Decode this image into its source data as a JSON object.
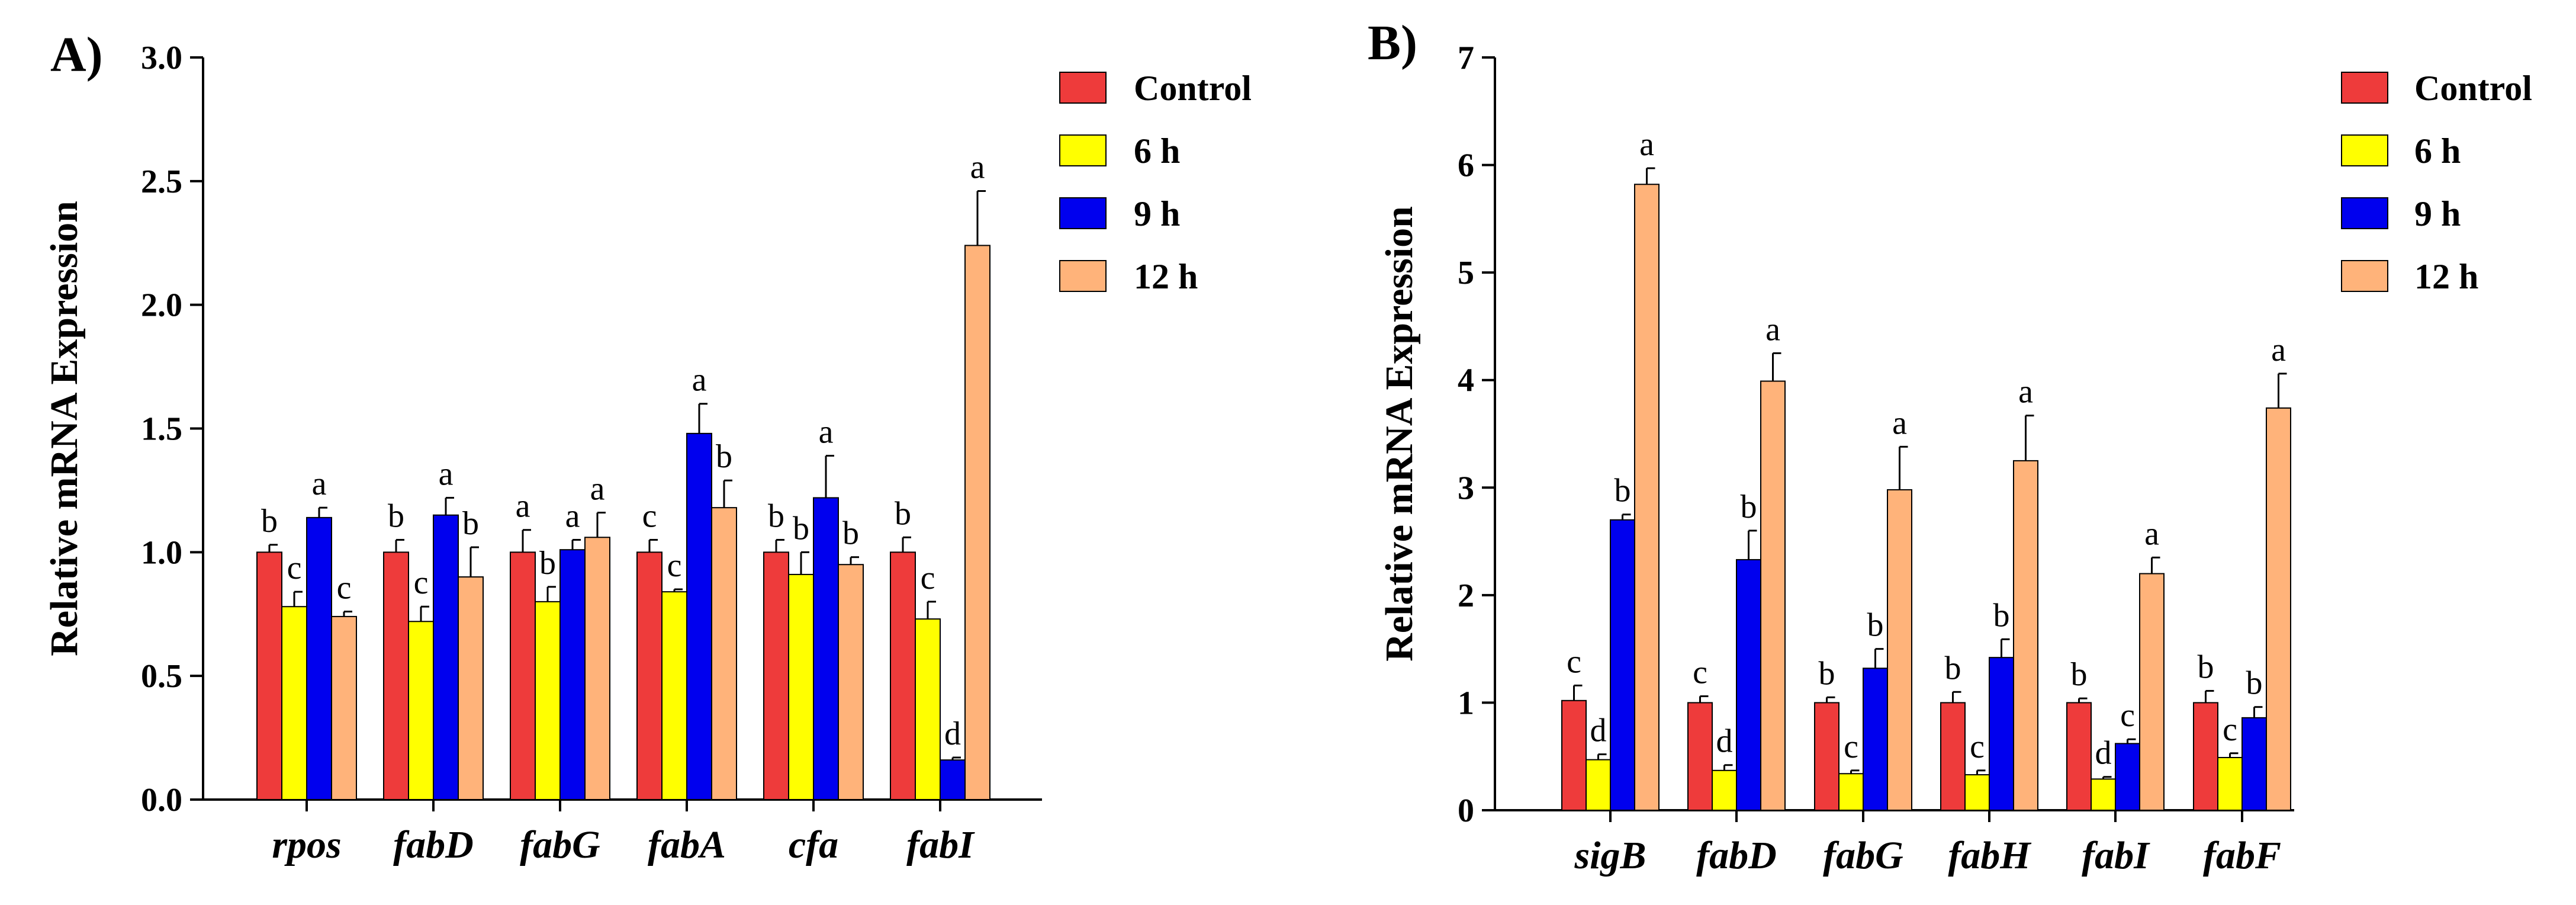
{
  "chart_data": [
    {
      "type": "bar",
      "panel_label": "A)",
      "ylabel": "Relative mRNA Expression",
      "xlabel": "",
      "ylim": [
        0,
        3.0
      ],
      "yticks": [
        "0.0",
        "0.5",
        "1.0",
        "1.5",
        "2.0",
        "2.5",
        "3.0"
      ],
      "categories": [
        "rpos",
        "fabD",
        "fabG",
        "fabA",
        "cfa",
        "fabI"
      ],
      "legend_position": "top-right",
      "series": [
        {
          "name": "Control",
          "color": "#EE3B3B",
          "values": [
            1.0,
            1.0,
            1.0,
            1.0,
            1.0,
            1.0
          ],
          "errors": [
            0.03,
            0.05,
            0.09,
            0.05,
            0.05,
            0.06
          ],
          "letters": [
            "b",
            "b",
            "a",
            "c",
            "b",
            "b"
          ]
        },
        {
          "name": "6 h",
          "color": "#FFFF00",
          "values": [
            0.78,
            0.72,
            0.8,
            0.84,
            0.91,
            0.73
          ],
          "errors": [
            0.06,
            0.06,
            0.06,
            0.01,
            0.09,
            0.07
          ],
          "letters": [
            "c",
            "c",
            "b",
            "c",
            "b",
            "c"
          ]
        },
        {
          "name": "9 h",
          "color": "#0000EE",
          "values": [
            1.14,
            1.15,
            1.01,
            1.48,
            1.22,
            0.16
          ],
          "errors": [
            0.04,
            0.07,
            0.04,
            0.12,
            0.17,
            0.01
          ],
          "letters": [
            "a",
            "a",
            "a",
            "a",
            "a",
            "d"
          ]
        },
        {
          "name": "12 h",
          "color": "#FFB37A",
          "values": [
            0.74,
            0.9,
            1.06,
            1.18,
            0.95,
            2.24
          ],
          "errors": [
            0.02,
            0.12,
            0.1,
            0.11,
            0.03,
            0.22
          ],
          "letters": [
            "c",
            "b",
            "a",
            "b",
            "b",
            "a"
          ]
        }
      ]
    },
    {
      "type": "bar",
      "panel_label": "B)",
      "ylabel": "Relative mRNA Expression",
      "xlabel": "",
      "ylim": [
        0,
        7
      ],
      "yticks": [
        "0",
        "1",
        "2",
        "3",
        "4",
        "5",
        "6",
        "7"
      ],
      "categories": [
        "sigB",
        "fabD",
        "fabG",
        "fabH",
        "fabI",
        "fabF"
      ],
      "legend_position": "top-right",
      "series": [
        {
          "name": "Control",
          "color": "#EE3B3B",
          "values": [
            1.02,
            1.0,
            1.0,
            1.0,
            1.0,
            1.0
          ],
          "errors": [
            0.14,
            0.06,
            0.05,
            0.1,
            0.04,
            0.11
          ],
          "letters": [
            "c",
            "c",
            "b",
            "b",
            "b",
            "b"
          ]
        },
        {
          "name": "6 h",
          "color": "#FFFF00",
          "values": [
            0.47,
            0.37,
            0.34,
            0.33,
            0.29,
            0.49
          ],
          "errors": [
            0.05,
            0.05,
            0.03,
            0.04,
            0.02,
            0.04
          ],
          "letters": [
            "d",
            "d",
            "c",
            "c",
            "d",
            "c"
          ]
        },
        {
          "name": "9 h",
          "color": "#0000EE",
          "values": [
            2.7,
            2.33,
            1.32,
            1.42,
            0.62,
            0.86
          ],
          "errors": [
            0.05,
            0.27,
            0.18,
            0.17,
            0.04,
            0.1
          ],
          "letters": [
            "b",
            "b",
            "b",
            "b",
            "c",
            "b"
          ]
        },
        {
          "name": "12 h",
          "color": "#FFB37A",
          "values": [
            5.82,
            3.99,
            2.98,
            3.25,
            2.2,
            3.74
          ],
          "errors": [
            0.15,
            0.26,
            0.4,
            0.42,
            0.15,
            0.32
          ],
          "letters": [
            "a",
            "a",
            "a",
            "a",
            "a",
            "a"
          ]
        }
      ]
    }
  ]
}
